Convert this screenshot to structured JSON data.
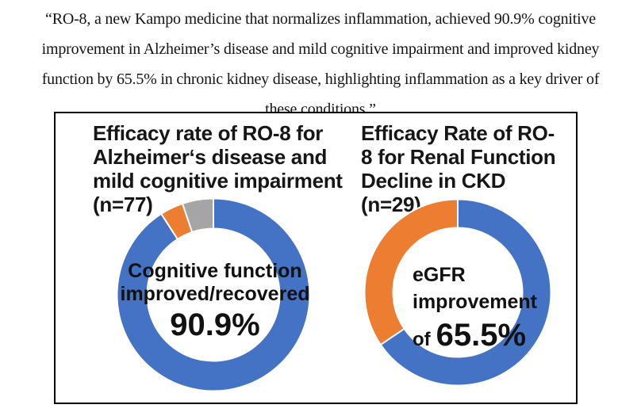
{
  "quote": {
    "text": "“RO-8, a new Kampo medicine that normalizes inflammation, achieved 90.9% cognitive improvement in Alzheimer’s disease and mild cognitive impairment and improved kidney function by 65.5% in chronic kidney disease, highlighting inflammation as a key driver of these conditions.”",
    "lines": [
      "“RO-8, a new Kampo medicine that normalizes inflammation, achieved 90.9% cognitive",
      "improvement in Alzheimer’s disease and mild cognitive impairment and improved kidney",
      "function by 65.5% in chronic kidney disease, highlighting inflammation as a key driver of",
      "these conditions.”"
    ]
  },
  "chart_data": [
    {
      "type": "pie",
      "variant": "donut",
      "title": "Efficacy rate of RO-8 for Alzheimer‘s disease and mild cognitive impairment (n=77)",
      "title_lines": [
        "Efficacy rate of RO-8 for",
        "Alzheimer‘s disease and",
        "mild cognitive impairment",
        "(n=77)"
      ],
      "n_label": "(n=77)",
      "n": 77,
      "labels": [
        "Cognitive function improved/recovered",
        "",
        ""
      ],
      "values": [
        90.9,
        3.9,
        5.2
      ],
      "colors": [
        "#4472C4",
        "#ED7D31",
        "#A5A5A5"
      ],
      "start_angle_deg": 0,
      "direction": "clockwise",
      "legend": "none",
      "center_label_lines": [
        "Cognitive function",
        "improved/recovered"
      ],
      "center_value": "90.9%"
    },
    {
      "type": "pie",
      "variant": "donut",
      "title": "Efficacy Rate of RO-8 for Renal Function Decline in CKD (n=29)",
      "title_lines": [
        "Efficacy Rate of RO-",
        "8 for Renal Function",
        "Decline in CKD",
        "(n=29)"
      ],
      "n_label": "(n=29)",
      "n": 29,
      "labels": [
        "eGFR improvement",
        ""
      ],
      "values": [
        65.5,
        34.5
      ],
      "colors": [
        "#4472C4",
        "#ED7D31"
      ],
      "start_angle_deg": 0,
      "direction": "clockwise",
      "legend": "none",
      "center_label_lines": [
        "eGFR",
        "improvement"
      ],
      "center_prefix": "of",
      "center_value": "65.5%"
    }
  ],
  "style_colors": {
    "series_blue": "#4472C4",
    "series_orange": "#ED7D31",
    "series_gray": "#A5A5A5",
    "panel_border": "#000000",
    "text": "#141414"
  }
}
